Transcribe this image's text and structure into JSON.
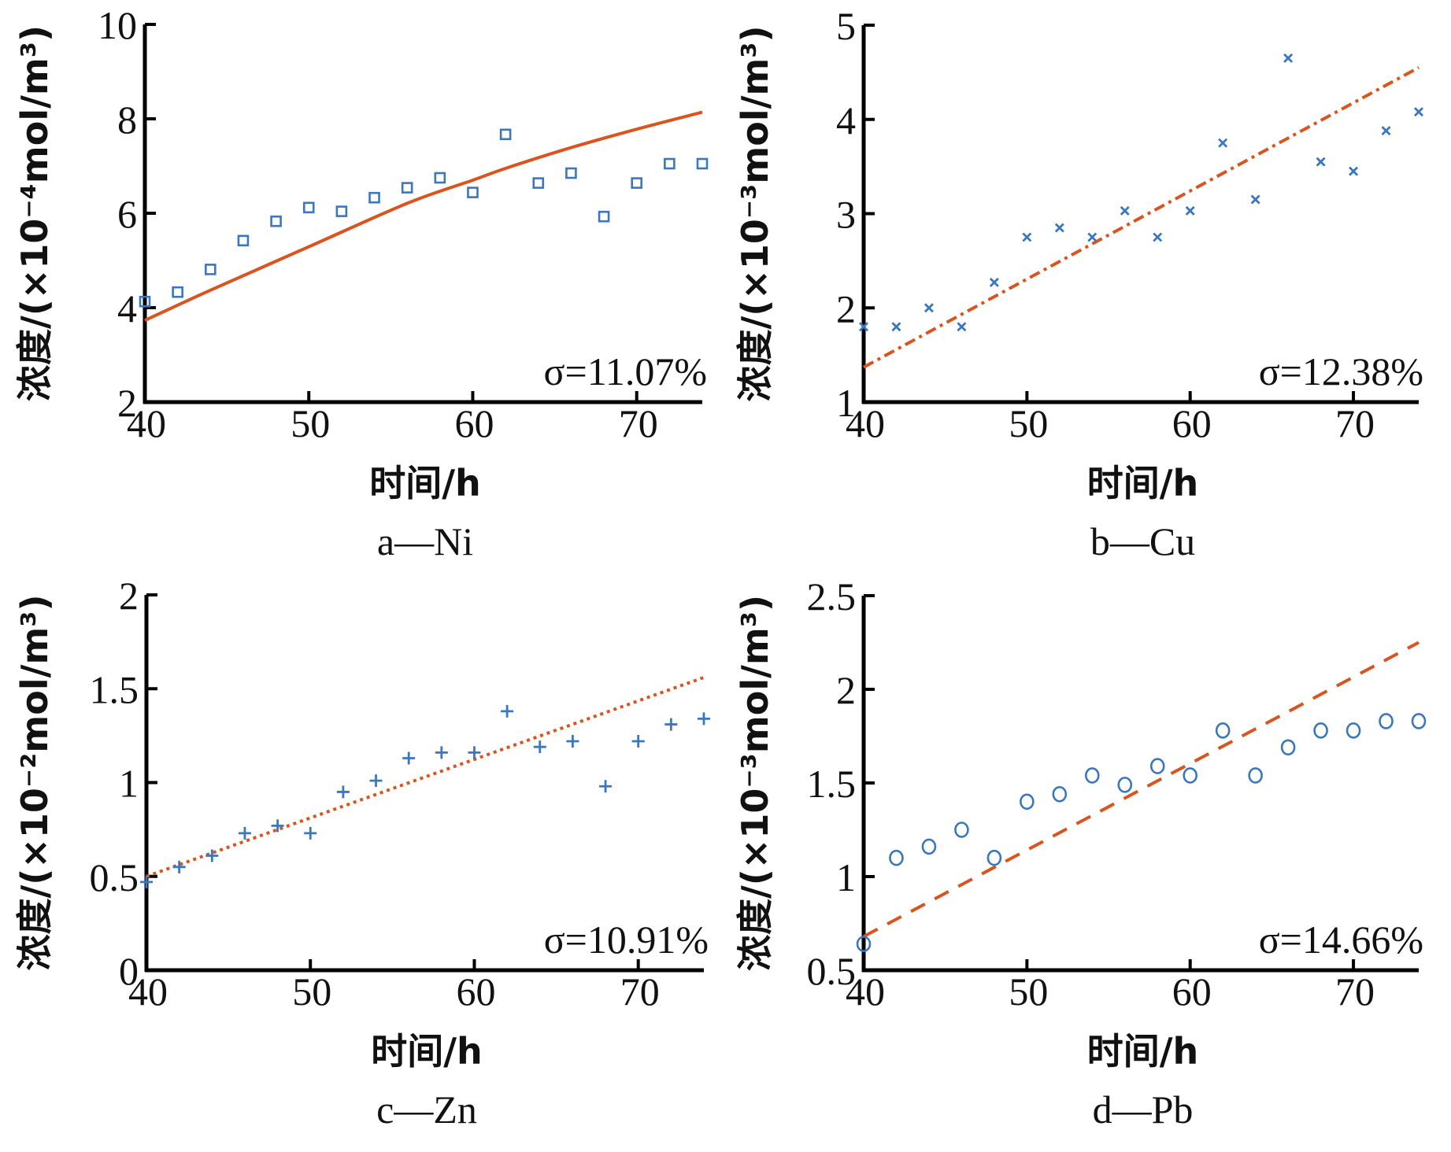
{
  "colors": {
    "marker": "#3A77BD",
    "fit_line": "#D9541E",
    "axis": "#000000"
  },
  "chart_data": [
    {
      "id": "a",
      "type": "scatter",
      "subtitle": "a—Ni",
      "xlabel": "时间/h",
      "ylabel": "浓度/(×10⁻⁴mol/m³)",
      "xlim": [
        40,
        74
      ],
      "ylim": [
        2,
        10
      ],
      "xticks": [
        40,
        50,
        60,
        70
      ],
      "yticks": [
        2,
        4,
        6,
        8,
        10
      ],
      "grid": false,
      "annotation": "σ=11.07%",
      "marker": "square",
      "line_style": "solid",
      "measured": {
        "x": [
          40,
          42,
          44,
          46,
          48,
          50,
          52,
          54,
          56,
          58,
          60,
          62,
          64,
          66,
          68,
          70,
          72,
          74
        ],
        "y": [
          4.13,
          4.33,
          4.81,
          5.42,
          5.83,
          6.12,
          6.04,
          6.33,
          6.54,
          6.75,
          6.44,
          7.67,
          6.64,
          6.85,
          5.93,
          6.64,
          7.05,
          7.05
        ]
      },
      "fit": {
        "x": [
          40,
          44,
          50,
          56,
          60,
          62,
          66,
          70,
          74
        ],
        "y": [
          3.73,
          4.37,
          5.29,
          6.21,
          6.7,
          6.95,
          7.39,
          7.78,
          8.14
        ]
      }
    },
    {
      "id": "b",
      "type": "scatter",
      "subtitle": "b—Cu",
      "xlabel": "时间/h",
      "ylabel": "浓度/(×10⁻³mol/m³)",
      "xlim": [
        40,
        74
      ],
      "ylim": [
        1,
        5
      ],
      "xticks": [
        40,
        50,
        60,
        70
      ],
      "yticks": [
        1,
        2,
        3,
        4,
        5
      ],
      "grid": false,
      "annotation": "σ=12.38%",
      "marker": "x",
      "line_style": "dashdot",
      "measured": {
        "x": [
          40,
          42,
          44,
          46,
          48,
          50,
          52,
          54,
          56,
          58,
          60,
          62,
          64,
          66,
          68,
          70,
          72,
          74
        ],
        "y": [
          1.8,
          1.8,
          2.0,
          1.8,
          2.27,
          2.75,
          2.85,
          2.75,
          3.03,
          2.75,
          3.03,
          3.75,
          3.15,
          4.65,
          3.55,
          3.45,
          3.88,
          4.08
        ]
      },
      "fit": {
        "x": [
          40,
          74
        ],
        "y": [
          1.37,
          4.55
        ]
      }
    },
    {
      "id": "c",
      "type": "scatter",
      "subtitle": "c—Zn",
      "xlabel": "时间/h",
      "ylabel": "浓度/(×10⁻²mol/m³)",
      "xlim": [
        40,
        74
      ],
      "ylim": [
        0,
        2
      ],
      "xticks": [
        40,
        50,
        60,
        70
      ],
      "yticks": [
        0,
        0.5,
        1,
        1.5,
        2
      ],
      "grid": false,
      "annotation": "σ=10.91%",
      "marker": "plus",
      "line_style": "dotted",
      "measured": {
        "x": [
          40,
          42,
          44,
          46,
          48,
          50,
          52,
          54,
          56,
          58,
          60,
          62,
          64,
          66,
          68,
          70,
          72,
          74
        ],
        "y": [
          0.47,
          0.55,
          0.61,
          0.73,
          0.77,
          0.73,
          0.95,
          1.01,
          1.13,
          1.16,
          1.16,
          1.38,
          1.19,
          1.22,
          0.98,
          1.22,
          1.31,
          1.34
        ]
      },
      "fit": {
        "x": [
          40,
          74
        ],
        "y": [
          0.5,
          1.56
        ]
      }
    },
    {
      "id": "d",
      "type": "scatter",
      "subtitle": "d—Pb",
      "xlabel": "时间/h",
      "ylabel": "浓度/(×10⁻³mol/m³)",
      "xlim": [
        40,
        74
      ],
      "ylim": [
        0.5,
        2.5
      ],
      "xticks": [
        40,
        50,
        60,
        70
      ],
      "yticks": [
        0.5,
        1,
        1.5,
        2,
        2.5
      ],
      "grid": false,
      "annotation": "σ=14.66%",
      "marker": "circle",
      "line_style": "dashed",
      "measured": {
        "x": [
          40,
          42,
          44,
          46,
          48,
          50,
          52,
          54,
          56,
          58,
          60,
          62,
          64,
          66,
          68,
          70,
          72,
          74
        ],
        "y": [
          0.64,
          1.1,
          1.16,
          1.25,
          1.1,
          1.4,
          1.44,
          1.54,
          1.49,
          1.59,
          1.54,
          1.78,
          1.54,
          1.69,
          1.78,
          1.78,
          1.83,
          1.83
        ]
      },
      "fit": {
        "x": [
          40,
          74
        ],
        "y": [
          0.68,
          2.25
        ]
      }
    }
  ]
}
